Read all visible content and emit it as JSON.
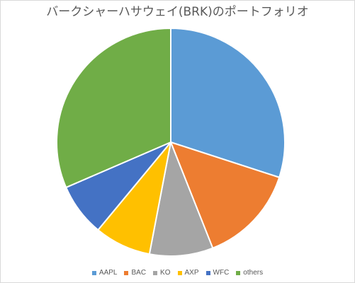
{
  "chart_data": {
    "type": "pie",
    "title": "バークシャーハサウェイ(BRK)のポートフォリオ",
    "categories": [
      "AAPL",
      "BAC",
      "KO",
      "AXP",
      "WFC",
      "others"
    ],
    "values": [
      30,
      14,
      9,
      8,
      7.5,
      31.5
    ],
    "colors": [
      "#5B9BD5",
      "#ED7D31",
      "#A5A5A5",
      "#FFC000",
      "#4472C4",
      "#70AD47"
    ],
    "start_angle": "12 o'clock",
    "direction": "clockwise",
    "legend_position": "bottom"
  }
}
